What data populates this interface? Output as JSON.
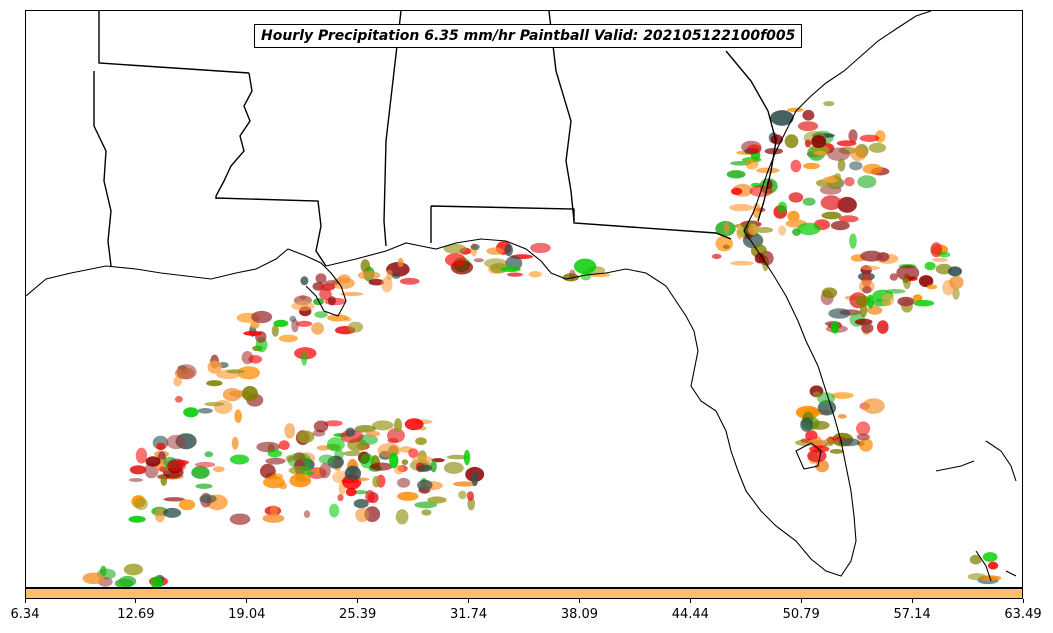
{
  "title": "Hourly Precipitation 6.35 mm/hr Paintball Valid: 202105122100f005",
  "colorbar": {
    "color": "#f9c06a",
    "ticks": [
      "6.34",
      "12.69",
      "19.04",
      "25.39",
      "31.74",
      "38.09",
      "44.44",
      "50.79",
      "57.14",
      "63.49"
    ]
  },
  "member_colors": [
    "#ff0000",
    "#e31a1c",
    "#00cc00",
    "#22b022",
    "#ff8c00",
    "#f28e2b",
    "#8b0000",
    "#a03a3a",
    "#808000",
    "#9a9a20",
    "#2f4f4f",
    "#ffa040"
  ],
  "map_features": [
    "state-borders",
    "coastline",
    "precipitation-blobs"
  ]
}
